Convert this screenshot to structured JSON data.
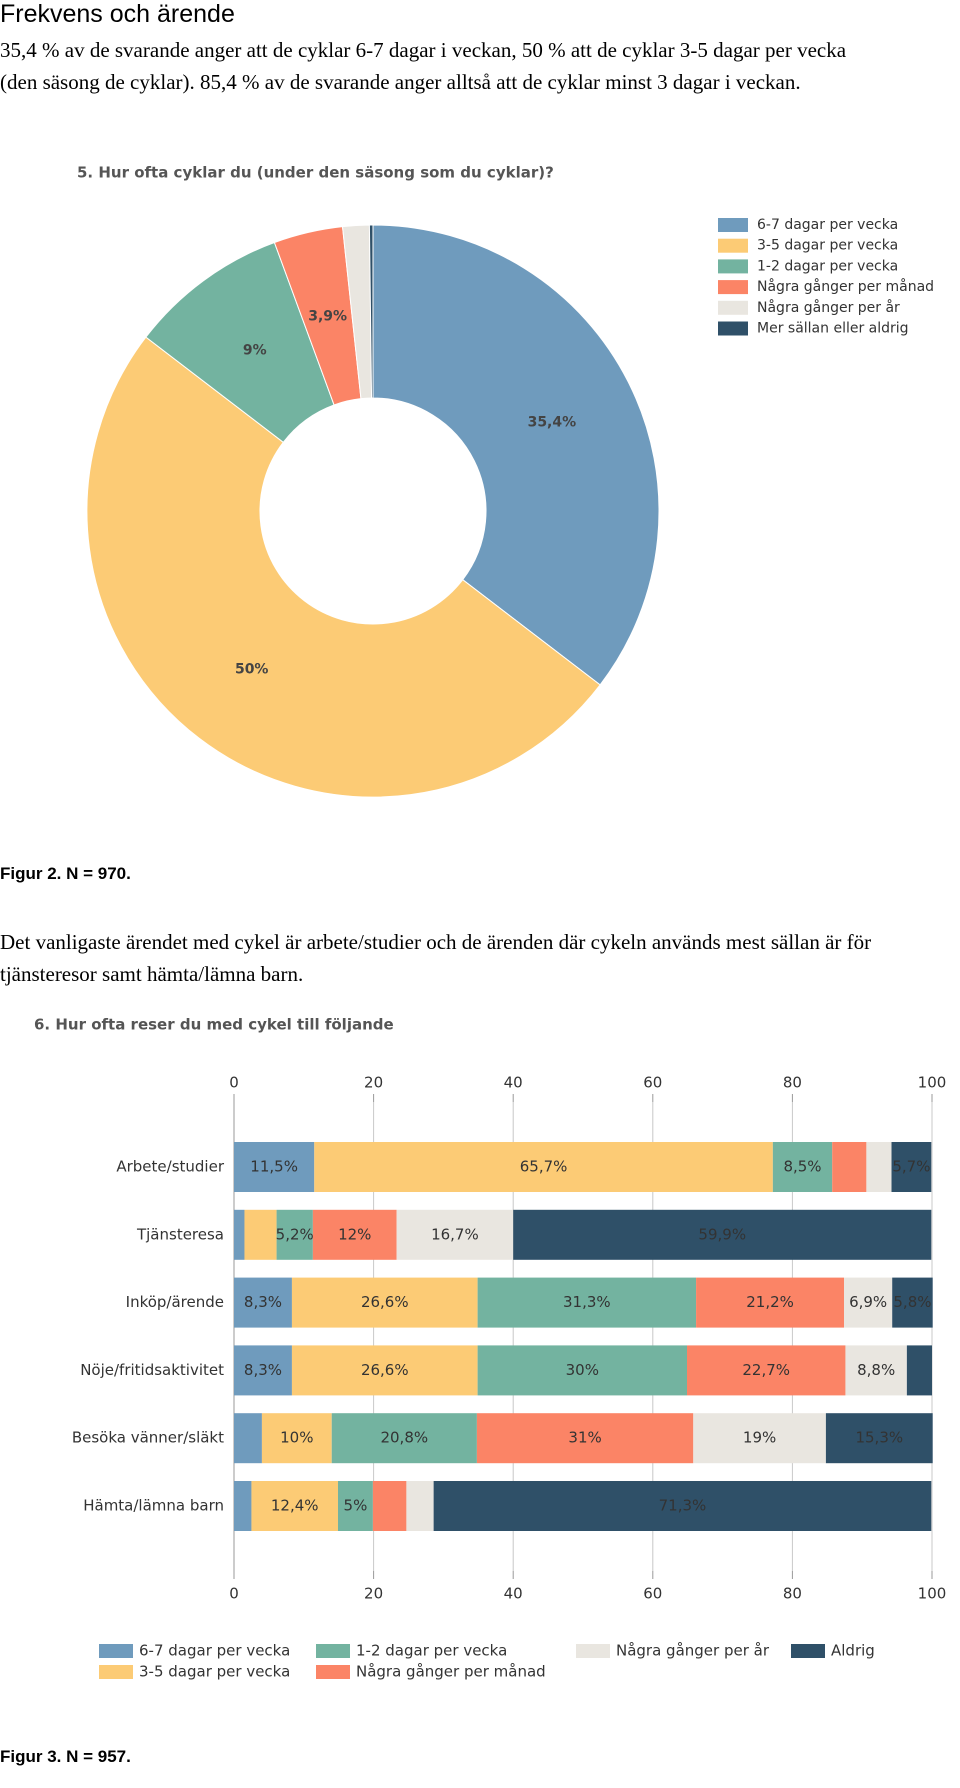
{
  "heading": "Frekvens och ärende",
  "paragraphs": [
    "35,4 % av de svarande anger att de cyklar 6-7 dagar i veckan, 50 % att de cyklar 3-5 dagar per vecka (den säsong de cyklar). 85,4 % av de svarande anger alltså att de cyklar minst 3 dagar i veckan.",
    "Det vanligaste ärendet med cykel är arbete/studier och de ärenden där cykeln används mest sällan är för tjänsteresor samt hämta/lämna barn."
  ],
  "captions": [
    "Figur 2. N = 970.",
    "Figur 3. N = 957."
  ],
  "chart_data": [
    {
      "type": "donut",
      "title": "5. Hur ofta cyklar du (under den säsong som du cyklar)?",
      "categories": [
        "6-7 dagar per vecka",
        "3-5 dagar per vecka",
        "1-2 dagar per vecka",
        "Några gånger per månad",
        "Några gånger per år",
        "Mer sällan eller aldrig"
      ],
      "values": [
        35.4,
        50,
        9,
        3.9,
        1.5,
        0.2
      ],
      "value_labels": [
        "35,4%",
        "50%",
        "9%",
        "3,9%",
        null,
        null
      ],
      "colors": [
        "#6f9bbd",
        "#fccb75",
        "#73b3a0",
        "#fb8466",
        "#e9e6e0",
        "#2f5068"
      ],
      "legend": "right"
    },
    {
      "type": "stacked-barh",
      "title": "6. Hur ofta reser du med cykel till följande",
      "categories": [
        "Arbete/studier",
        "Tjänsteresa",
        "Inköp/ärende",
        "Nöje/fritidsaktivitet",
        "Besöka vänner/släkt",
        "Hämta/lämna barn"
      ],
      "xlim": [
        0,
        100
      ],
      "xticks": [
        0,
        20,
        40,
        60,
        80,
        100
      ],
      "grid": true,
      "legend": "bottom",
      "series": [
        {
          "name": "6-7 dagar per vecka",
          "color": "#6f9bbd",
          "values": [
            11.5,
            1.5,
            8.3,
            8.3,
            4,
            2.5
          ],
          "value_labels": [
            "11,5%",
            null,
            "8,3%",
            "8,3%",
            null,
            null
          ]
        },
        {
          "name": "3-5 dagar per vecka",
          "color": "#fccb75",
          "values": [
            65.7,
            4.6,
            26.6,
            26.6,
            10,
            12.4
          ],
          "value_labels": [
            "65,7%",
            null,
            "26,6%",
            "26,6%",
            "10%",
            "12,4%"
          ]
        },
        {
          "name": "1-2 dagar per vecka",
          "color": "#73b3a0",
          "values": [
            8.5,
            5.2,
            31.3,
            30,
            20.8,
            5
          ],
          "value_labels": [
            "8,5%",
            "5,2%",
            "31,3%",
            "30%",
            "20,8%",
            "5%"
          ]
        },
        {
          "name": "Några gånger per månad",
          "color": "#fb8466",
          "values": [
            4.9,
            12,
            21.2,
            22.7,
            31,
            4.8
          ],
          "value_labels": [
            null,
            "12%",
            "21,2%",
            "22,7%",
            "31%",
            null
          ]
        },
        {
          "name": "Några gånger per år",
          "color": "#e9e6e0",
          "values": [
            3.6,
            16.7,
            6.9,
            8.8,
            19,
            3.9
          ],
          "value_labels": [
            null,
            "16,7%",
            "6,9%",
            "8,8%",
            "19%",
            null
          ]
        },
        {
          "name": "Aldrig",
          "color": "#2f5068",
          "values": [
            5.7,
            59.9,
            5.8,
            3.6,
            15.3,
            71.3
          ],
          "value_labels": [
            "5,7%",
            "59,9%",
            "5,8%",
            null,
            "15,3%",
            "71,3%"
          ]
        }
      ]
    }
  ]
}
